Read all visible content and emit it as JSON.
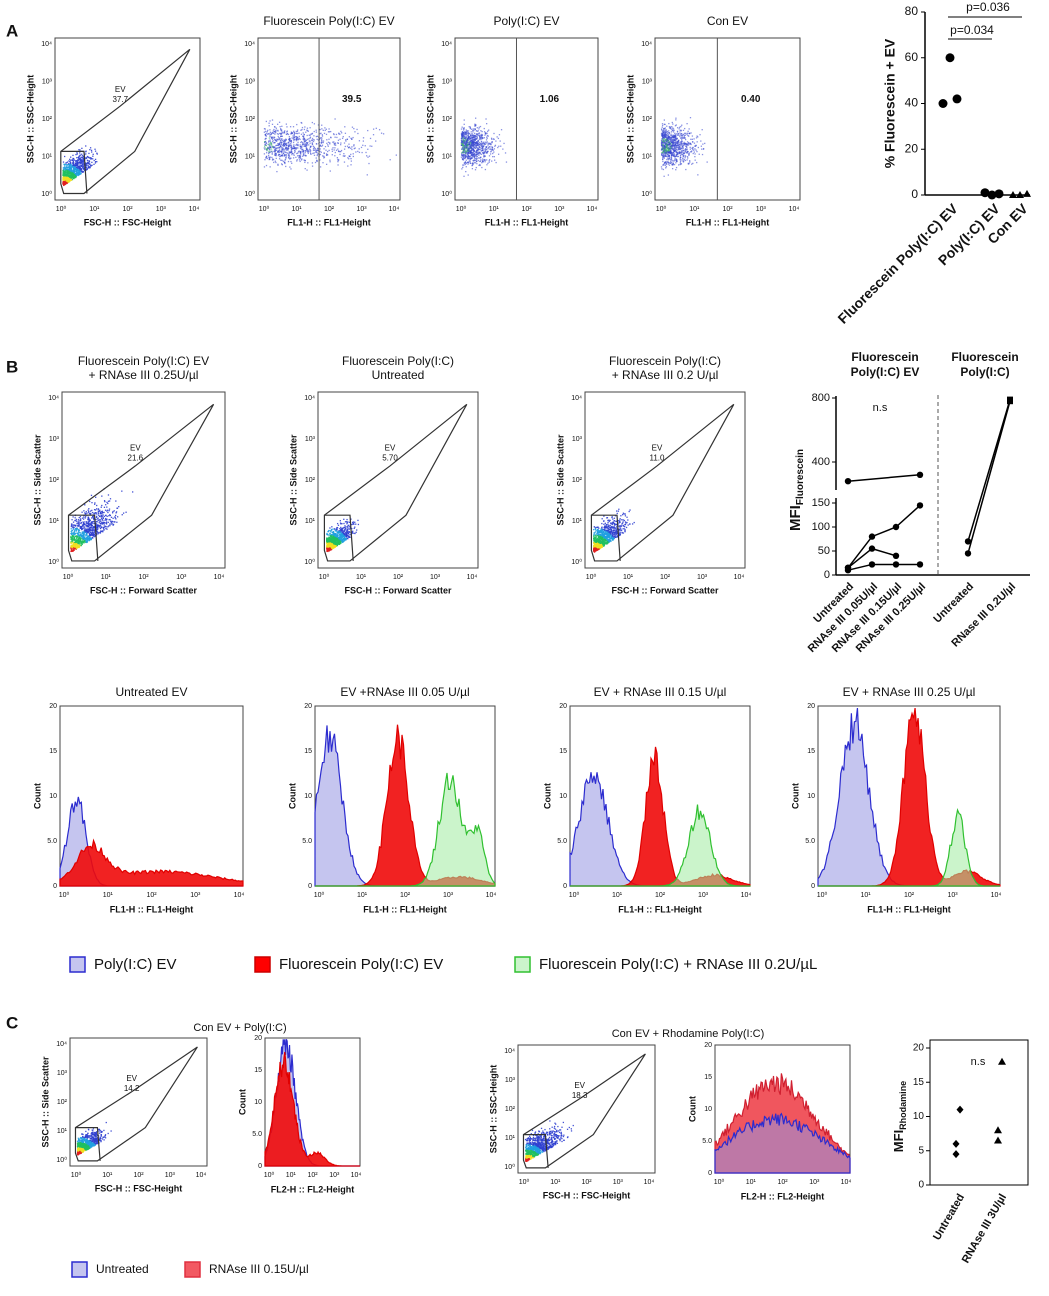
{
  "log_ticks": [
    "10⁰",
    "10¹",
    "10²",
    "10³",
    "10⁴"
  ],
  "hist_y_labels": [
    "0",
    "5.0",
    "10",
    "15",
    "20"
  ],
  "panel_a": {
    "label": "A",
    "flow": [
      {
        "x_label": "FSC-H :: FSC-Height",
        "y_label": "SSC-H :: SSC-Height",
        "gate": "EV",
        "gate_value": "37.7"
      },
      {
        "title": [
          "Fluorescein Poly(I:C) EV"
        ],
        "x_label": "FL1-H :: FL1-Height",
        "y_label": "SSC-H :: SSC-Height",
        "gate_value": "39.5"
      },
      {
        "title": [
          "Poly(I:C) EV"
        ],
        "x_label": "FL1-H :: FL1-Height",
        "y_label": "SSC-H :: SSC-Height",
        "gate_value": "1.06"
      },
      {
        "title": [
          "Con EV"
        ],
        "x_label": "FL1-H :: FL1-Height",
        "y_label": "SSC-H :: SSC-Height",
        "gate_value": "0.40"
      }
    ],
    "chart": {
      "type": "scatter",
      "y_label": "% Fluorescein + EV",
      "categories": [
        "Fluorescein Poly(I:C) EV",
        "Poly(I:C) EV",
        "Con EV"
      ],
      "values": [
        [
          40,
          60,
          42
        ],
        [
          1,
          0,
          0.5
        ],
        [
          0,
          0,
          0.5
        ]
      ],
      "ylim": [
        0,
        80
      ],
      "yticks": [
        0,
        20,
        40,
        60,
        80
      ],
      "annotations": [
        "p=0.036",
        "p=0.034"
      ]
    }
  },
  "panel_b": {
    "label": "B",
    "flow": [
      {
        "title": [
          "Fluorescein Poly(I:C) EV",
          "+ RNAse III 0.25U/µl"
        ],
        "x_label": "FSC-H :: Forward Scatter",
        "y_label": "SSC-H :: Side Scatter",
        "gate": "EV",
        "gate_value": "21.6"
      },
      {
        "title": [
          "Fluorescein Poly(I:C)",
          "Untreated"
        ],
        "x_label": "FSC-H :: Forward Scatter",
        "y_label": "SSC-H :: Side Scatter",
        "gate": "EV",
        "gate_value": "5.70"
      },
      {
        "title": [
          "Fluorescein Poly(I:C)",
          "+ RNAse III 0.2 U/µl"
        ],
        "x_label": "FSC-H :: Forward Scatter",
        "y_label": "SSC-H :: Side Scatter",
        "gate": "EV",
        "gate_value": "11.0"
      }
    ],
    "chart": {
      "type": "line",
      "y_label": "MFI",
      "y_label_sub": "Fluorescein",
      "annotation": "n.s",
      "ylim_lower": [
        0,
        150
      ],
      "yticks_lower": [
        0,
        50,
        100,
        150
      ],
      "ylim_upper": [
        200,
        800
      ],
      "yticks_upper": [
        400,
        800
      ],
      "left": {
        "title": [
          "Fluorescein",
          "Poly(I:C) EV"
        ],
        "categories": [
          "Untreated",
          "RNAse III 0.05U/µl",
          "RNAse III 0.15U/µl",
          "RNAse III 0.25U/µl"
        ],
        "series": [
          {
            "x": [
              0,
              3
            ],
            "values": [
              280,
              320
            ]
          },
          {
            "x": [
              0,
              1,
              2,
              3
            ],
            "values": [
              15,
              80,
              100,
              145
            ]
          },
          {
            "x": [
              0,
              1,
              2
            ],
            "values": [
              15,
              55,
              40
            ]
          },
          {
            "x": [
              0,
              1,
              2,
              3
            ],
            "values": [
              10,
              22,
              22,
              22
            ]
          }
        ]
      },
      "right": {
        "title": [
          "Fluorescein",
          "Poly(I:C)"
        ],
        "categories": [
          "Untreated",
          "RNase III 0.2U/µl"
        ],
        "series": [
          {
            "x": [
              0,
              1
            ],
            "values": [
              70,
              790
            ]
          },
          {
            "x": [
              0,
              1
            ],
            "values": [
              45,
              780
            ]
          }
        ]
      }
    },
    "hist": [
      {
        "title": "Untreated EV",
        "x_label": "FL1-H :: FL1-Height",
        "y_label": "Count"
      },
      {
        "title": "EV +RNAse III 0.05 U/µl",
        "x_label": "FL1-H :: FL1-Height",
        "y_label": "Count"
      },
      {
        "title": "EV + RNAse III 0.15 U/µl",
        "x_label": "FL1-H :: FL1-Height",
        "y_label": "Count"
      },
      {
        "title": "EV + RNAse III 0.25 U/µl",
        "x_label": "FL1-H :: FL1-Height",
        "y_label": "Count"
      }
    ],
    "legend": [
      "Poly(I:C) EV",
      "Fluorescein Poly(I:C) EV",
      "Fluorescein Poly(I:C) + RNAse III 0.2U/µL"
    ]
  },
  "panel_c": {
    "label": "C",
    "titles": [
      "Con EV + Poly(I:C)",
      "Con EV + Rhodamine Poly(I:C)"
    ],
    "flow": [
      {
        "x_label": "FSC-H :: FSC-Height",
        "y_label": "SSC-H :: Side Scatter",
        "gate": "EV",
        "gate_value": "14.2"
      },
      {
        "x_label": "FSC-H :: FSC-Height",
        "y_label": "SSC-H :: SSC-Height",
        "gate": "EV",
        "gate_value": "18.3"
      }
    ],
    "hist": [
      {
        "x_label": "FL2-H :: FL2-Height",
        "y_label": "Count"
      },
      {
        "x_label": "FL2-H :: FL2-Height",
        "y_label": "Count"
      }
    ],
    "chart": {
      "type": "scatter",
      "y_label": "MFI",
      "y_label_sub": "Rhodamine",
      "annotation": "n.s",
      "categories": [
        "Untreated",
        "RNAse III 3U/µl"
      ],
      "values": [
        [
          11,
          6,
          4.5
        ],
        [
          18,
          8,
          6.5
        ]
      ],
      "ylim": [
        0,
        20
      ],
      "yticks": [
        0,
        5,
        10,
        15,
        20
      ]
    },
    "legend": [
      "Untreated",
      "RNAse III 0.15U/µl"
    ]
  }
}
